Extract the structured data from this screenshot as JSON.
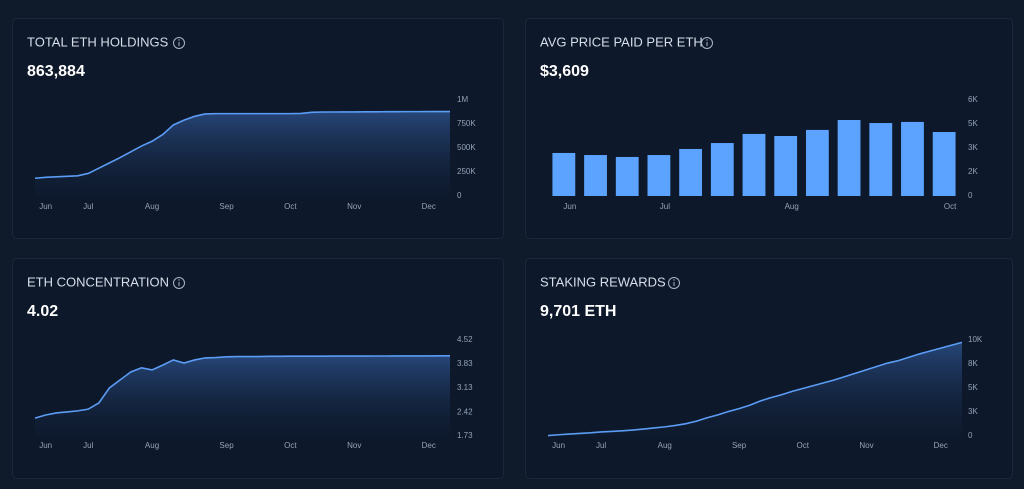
{
  "chart_data": [
    {
      "type": "area",
      "title": "TOTAL ETH HOLDINGS",
      "headline": "863,884",
      "color": "#5b9cf5",
      "categories": [
        null,
        "Jun",
        null,
        null,
        null,
        "Jul",
        null,
        null,
        null,
        null,
        null,
        "Aug",
        null,
        null,
        null,
        null,
        null,
        null,
        "Sep",
        null,
        null,
        null,
        null,
        null,
        "Oct",
        null,
        null,
        null,
        null,
        null,
        "Nov",
        null,
        null,
        null,
        null,
        null,
        null,
        "Dec",
        null,
        null
      ],
      "values": [
        185000,
        195000,
        200000,
        205000,
        210000,
        235000,
        290000,
        345000,
        400000,
        460000,
        520000,
        570000,
        640000,
        740000,
        790000,
        830000,
        855000,
        858000,
        858000,
        858000,
        858000,
        858000,
        858000,
        858000,
        858000,
        860000,
        872000,
        875000,
        875000,
        876000,
        876000,
        877000,
        877000,
        878000,
        878000,
        879000,
        879000,
        880000,
        880000,
        880000
      ],
      "ylim": [
        0,
        1000000
      ],
      "yticks": [
        0,
        {
          "value": 250000,
          "label": "250K"
        },
        {
          "value": 500000,
          "label": "500K"
        },
        {
          "value": 750000,
          "label": "750K"
        },
        {
          "value": 1000000,
          "label": "1M"
        }
      ]
    },
    {
      "type": "bar",
      "title": "AVG PRICE PAID PER ETH",
      "headline": "$3,609",
      "color": "#5ba3ff",
      "categories": [
        "Jun",
        null,
        null,
        "Jul",
        null,
        null,
        null,
        "Aug",
        null,
        null,
        null,
        null,
        "Oct"
      ],
      "values": [
        2690,
        2560,
        2440,
        2560,
        2940,
        3310,
        3880,
        3750,
        4130,
        4750,
        4560,
        4630,
        4000
      ],
      "ylim": [
        0,
        6000
      ],
      "yticks": [
        0,
        {
          "value": 1500,
          "label": "2K"
        },
        {
          "value": 3000,
          "label": "3K"
        },
        {
          "value": 4500,
          "label": "5K"
        },
        {
          "value": 6000,
          "label": "6K"
        }
      ]
    },
    {
      "type": "area",
      "title": "ETH CONCENTRATION",
      "headline": "4.02",
      "color": "#5b9cf5",
      "categories": [
        null,
        "Jun",
        null,
        null,
        null,
        "Jul",
        null,
        null,
        null,
        null,
        null,
        "Aug",
        null,
        null,
        null,
        null,
        null,
        null,
        "Sep",
        null,
        null,
        null,
        null,
        null,
        "Oct",
        null,
        null,
        null,
        null,
        null,
        "Nov",
        null,
        null,
        null,
        null,
        null,
        null,
        "Dec",
        null,
        null
      ],
      "values": [
        2.25,
        2.34,
        2.4,
        2.43,
        2.46,
        2.51,
        2.69,
        3.13,
        3.36,
        3.59,
        3.71,
        3.65,
        3.79,
        3.94,
        3.85,
        3.94,
        4.0,
        4.01,
        4.03,
        4.04,
        4.04,
        4.04,
        4.045,
        4.045,
        4.05,
        4.05,
        4.05,
        4.05,
        4.052,
        4.052,
        4.054,
        4.054,
        4.055,
        4.055,
        4.056,
        4.056,
        4.058,
        4.058,
        4.06,
        4.06
      ],
      "ylim": [
        1.73,
        4.52
      ],
      "yticks": [
        1.73,
        2.42,
        3.13,
        3.83,
        4.52
      ]
    },
    {
      "type": "area",
      "title": "STAKING REWARDS",
      "headline": "9,701 ETH",
      "color": "#5b9cf5",
      "categories": [
        null,
        "Jun",
        null,
        null,
        null,
        "Jul",
        null,
        null,
        null,
        null,
        null,
        "Aug",
        null,
        null,
        null,
        null,
        null,
        null,
        "Sep",
        null,
        null,
        null,
        null,
        null,
        "Oct",
        null,
        null,
        null,
        null,
        null,
        "Nov",
        null,
        null,
        null,
        null,
        null,
        null,
        "Dec",
        null,
        null
      ],
      "values": [
        50,
        130,
        200,
        270,
        330,
        420,
        480,
        540,
        620,
        720,
        840,
        950,
        1100,
        1280,
        1550,
        1900,
        2200,
        2550,
        2850,
        3200,
        3650,
        4000,
        4300,
        4650,
        4950,
        5250,
        5550,
        5850,
        6200,
        6550,
        6900,
        7250,
        7600,
        7850,
        8200,
        8550,
        8850,
        9150,
        9450,
        9750
      ],
      "ylim": [
        0,
        10000
      ],
      "yticks": [
        0,
        {
          "value": 2500,
          "label": "3K"
        },
        {
          "value": 5000,
          "label": "5K"
        },
        {
          "value": 7500,
          "label": "8K"
        },
        {
          "value": 10000,
          "label": "10K"
        }
      ]
    }
  ]
}
